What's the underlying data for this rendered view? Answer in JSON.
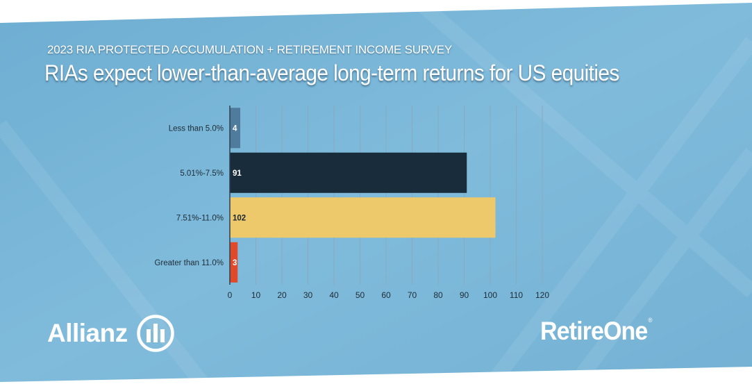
{
  "header": {
    "survey": "2023 RIA PROTECTED ACCUMULATION + RETIREMENT INCOME SURVEY",
    "headline": "RIAs expect lower-than-average long-term returns for US equities"
  },
  "chart_data": {
    "type": "bar",
    "orientation": "horizontal",
    "categories": [
      "Less than 5.0%",
      "5.01%-7.5%",
      "7.51%-11.0%",
      "Greater than 11.0%"
    ],
    "values": [
      4,
      91,
      102,
      3
    ],
    "data_labels": [
      "4",
      "91",
      "102",
      "3"
    ],
    "bar_colors": [
      "#4f7c9c",
      "#192c3b",
      "#edc96b",
      "#e0492a"
    ],
    "label_colors": [
      "#ffffff",
      "#ffffff",
      "#1a2630",
      "#ffffff"
    ],
    "x_ticks": [
      0,
      10,
      20,
      30,
      40,
      50,
      60,
      70,
      80,
      90,
      100,
      110,
      120
    ],
    "x_tick_labels": [
      "0",
      "10",
      "20",
      "30",
      "40",
      "50",
      "60",
      "70",
      "80",
      "90",
      "100",
      "110",
      "120"
    ],
    "xlim": [
      0,
      120
    ],
    "grid": true,
    "xlabel": "",
    "ylabel": ""
  },
  "logos": {
    "allianz": "Allianz",
    "retireone": "RetireOne",
    "retireone_mark": "®"
  },
  "colors": {
    "background": "#7cb6d6",
    "axis": "#2c4150",
    "grid": "#8aa9bd",
    "text": "#1e2c36"
  }
}
